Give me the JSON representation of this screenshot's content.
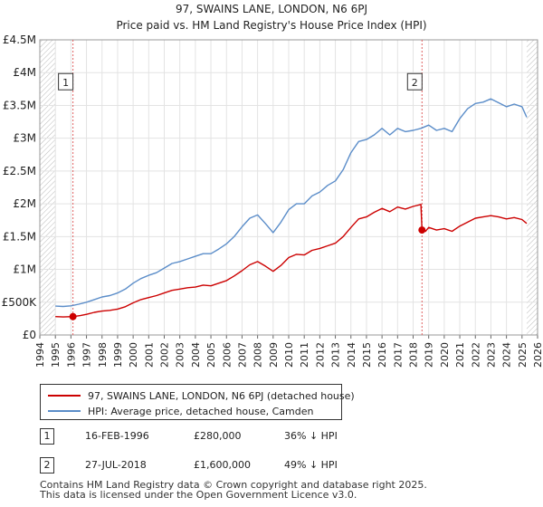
{
  "chart_data": {
    "type": "line",
    "title": "97, SWAINS LANE, LONDON, N6 6PJ",
    "subtitle": "Price paid vs. HM Land Registry's House Price Index (HPI)",
    "xlim": [
      1994,
      2026
    ],
    "ylim": [
      0,
      4500000
    ],
    "x_ticks": [
      "1994",
      "1995",
      "1996",
      "1997",
      "1998",
      "1999",
      "2000",
      "2001",
      "2002",
      "2003",
      "2004",
      "2005",
      "2006",
      "2007",
      "2008",
      "2009",
      "2010",
      "2011",
      "2012",
      "2013",
      "2014",
      "2015",
      "2016",
      "2017",
      "2018",
      "2019",
      "2020",
      "2021",
      "2022",
      "2023",
      "2024",
      "2025",
      "2026"
    ],
    "y_ticks": [
      {
        "value": 0,
        "label": "£0"
      },
      {
        "value": 500000,
        "label": "£500K"
      },
      {
        "value": 1000000,
        "label": "£1M"
      },
      {
        "value": 1500000,
        "label": "£1.5M"
      },
      {
        "value": 2000000,
        "label": "£2M"
      },
      {
        "value": 2500000,
        "label": "£2.5M"
      },
      {
        "value": 3000000,
        "label": "£3M"
      },
      {
        "value": 3500000,
        "label": "£3.5M"
      },
      {
        "value": 4000000,
        "label": "£4M"
      },
      {
        "value": 4500000,
        "label": "£4.5M"
      }
    ],
    "grid": true,
    "series": [
      {
        "name": "97, SWAINS LANE, LONDON, N6 6PJ (detached house)",
        "color": "#cc0000",
        "points": [
          [
            1995.0,
            280000
          ],
          [
            1995.5,
            275000
          ],
          [
            1996.13,
            280000
          ],
          [
            1996.6,
            295000
          ],
          [
            1997.0,
            315000
          ],
          [
            1997.5,
            345000
          ],
          [
            1998.0,
            365000
          ],
          [
            1998.5,
            375000
          ],
          [
            1999.0,
            395000
          ],
          [
            1999.5,
            430000
          ],
          [
            2000.0,
            490000
          ],
          [
            2000.5,
            540000
          ],
          [
            2001.0,
            570000
          ],
          [
            2001.5,
            600000
          ],
          [
            2002.0,
            640000
          ],
          [
            2002.5,
            680000
          ],
          [
            2003.0,
            700000
          ],
          [
            2003.5,
            720000
          ],
          [
            2004.0,
            730000
          ],
          [
            2004.5,
            760000
          ],
          [
            2005.0,
            750000
          ],
          [
            2005.5,
            790000
          ],
          [
            2006.0,
            830000
          ],
          [
            2006.5,
            900000
          ],
          [
            2007.0,
            980000
          ],
          [
            2007.5,
            1070000
          ],
          [
            2008.0,
            1120000
          ],
          [
            2008.5,
            1050000
          ],
          [
            2009.0,
            970000
          ],
          [
            2009.5,
            1060000
          ],
          [
            2010.0,
            1180000
          ],
          [
            2010.5,
            1230000
          ],
          [
            2011.0,
            1220000
          ],
          [
            2011.5,
            1290000
          ],
          [
            2012.0,
            1320000
          ],
          [
            2012.5,
            1360000
          ],
          [
            2013.0,
            1400000
          ],
          [
            2013.5,
            1500000
          ],
          [
            2014.0,
            1640000
          ],
          [
            2014.5,
            1770000
          ],
          [
            2015.0,
            1800000
          ],
          [
            2015.5,
            1870000
          ],
          [
            2016.0,
            1930000
          ],
          [
            2016.5,
            1880000
          ],
          [
            2017.0,
            1950000
          ],
          [
            2017.5,
            1920000
          ],
          [
            2018.0,
            1960000
          ],
          [
            2018.5,
            1990000
          ],
          [
            2018.57,
            1600000
          ],
          [
            2018.8,
            1580000
          ],
          [
            2019.0,
            1640000
          ],
          [
            2019.5,
            1600000
          ],
          [
            2020.0,
            1620000
          ],
          [
            2020.5,
            1580000
          ],
          [
            2021.0,
            1660000
          ],
          [
            2021.5,
            1720000
          ],
          [
            2022.0,
            1780000
          ],
          [
            2022.5,
            1800000
          ],
          [
            2023.0,
            1820000
          ],
          [
            2023.5,
            1800000
          ],
          [
            2024.0,
            1770000
          ],
          [
            2024.5,
            1790000
          ],
          [
            2025.0,
            1760000
          ],
          [
            2025.3,
            1700000
          ]
        ]
      },
      {
        "name": "HPI: Average price, detached house, Camden",
        "color": "#5b8dc9",
        "points": [
          [
            1995.0,
            440000
          ],
          [
            1995.5,
            435000
          ],
          [
            1996.0,
            445000
          ],
          [
            1996.5,
            470000
          ],
          [
            1997.0,
            500000
          ],
          [
            1997.5,
            540000
          ],
          [
            1998.0,
            580000
          ],
          [
            1998.5,
            600000
          ],
          [
            1999.0,
            640000
          ],
          [
            1999.5,
            700000
          ],
          [
            2000.0,
            790000
          ],
          [
            2000.5,
            860000
          ],
          [
            2001.0,
            910000
          ],
          [
            2001.5,
            950000
          ],
          [
            2002.0,
            1020000
          ],
          [
            2002.5,
            1090000
          ],
          [
            2003.0,
            1120000
          ],
          [
            2003.5,
            1160000
          ],
          [
            2004.0,
            1200000
          ],
          [
            2004.5,
            1240000
          ],
          [
            2005.0,
            1240000
          ],
          [
            2005.5,
            1310000
          ],
          [
            2006.0,
            1390000
          ],
          [
            2006.5,
            1500000
          ],
          [
            2007.0,
            1650000
          ],
          [
            2007.5,
            1780000
          ],
          [
            2008.0,
            1830000
          ],
          [
            2008.5,
            1700000
          ],
          [
            2009.0,
            1560000
          ],
          [
            2009.5,
            1720000
          ],
          [
            2010.0,
            1910000
          ],
          [
            2010.5,
            2000000
          ],
          [
            2011.0,
            2000000
          ],
          [
            2011.5,
            2120000
          ],
          [
            2012.0,
            2180000
          ],
          [
            2012.5,
            2280000
          ],
          [
            2013.0,
            2350000
          ],
          [
            2013.5,
            2520000
          ],
          [
            2014.0,
            2780000
          ],
          [
            2014.5,
            2950000
          ],
          [
            2015.0,
            2980000
          ],
          [
            2015.5,
            3050000
          ],
          [
            2016.0,
            3150000
          ],
          [
            2016.5,
            3050000
          ],
          [
            2017.0,
            3150000
          ],
          [
            2017.5,
            3100000
          ],
          [
            2018.0,
            3120000
          ],
          [
            2018.5,
            3150000
          ],
          [
            2019.0,
            3200000
          ],
          [
            2019.5,
            3120000
          ],
          [
            2020.0,
            3150000
          ],
          [
            2020.5,
            3100000
          ],
          [
            2021.0,
            3300000
          ],
          [
            2021.5,
            3450000
          ],
          [
            2022.0,
            3530000
          ],
          [
            2022.5,
            3550000
          ],
          [
            2023.0,
            3600000
          ],
          [
            2023.5,
            3540000
          ],
          [
            2024.0,
            3480000
          ],
          [
            2024.5,
            3520000
          ],
          [
            2025.0,
            3480000
          ],
          [
            2025.3,
            3320000
          ]
        ]
      }
    ],
    "hatched_ranges": [
      [
        1994,
        1995.0
      ],
      [
        2025.3,
        2026
      ]
    ],
    "markers": [
      {
        "label": "1",
        "x": 1996.13,
        "y": 280000,
        "box_y": 4000000
      },
      {
        "label": "2",
        "x": 2018.57,
        "y": 1600000,
        "box_y": 4000000
      }
    ]
  },
  "legend": {
    "items": [
      {
        "label": "97, SWAINS LANE, LONDON, N6 6PJ (detached house)",
        "color": "#cc0000"
      },
      {
        "label": "HPI: Average price, detached house, Camden",
        "color": "#5b8dc9"
      }
    ]
  },
  "sales": [
    {
      "num": "1",
      "date": "16-FEB-1996",
      "price": "£280,000",
      "hpi": "36% ↓ HPI"
    },
    {
      "num": "2",
      "date": "27-JUL-2018",
      "price": "£1,600,000",
      "hpi": "49% ↓ HPI"
    }
  ],
  "footer": {
    "line1": "Contains HM Land Registry data © Crown copyright and database right 2025.",
    "line2": "This data is licensed under the Open Government Licence v3.0."
  }
}
